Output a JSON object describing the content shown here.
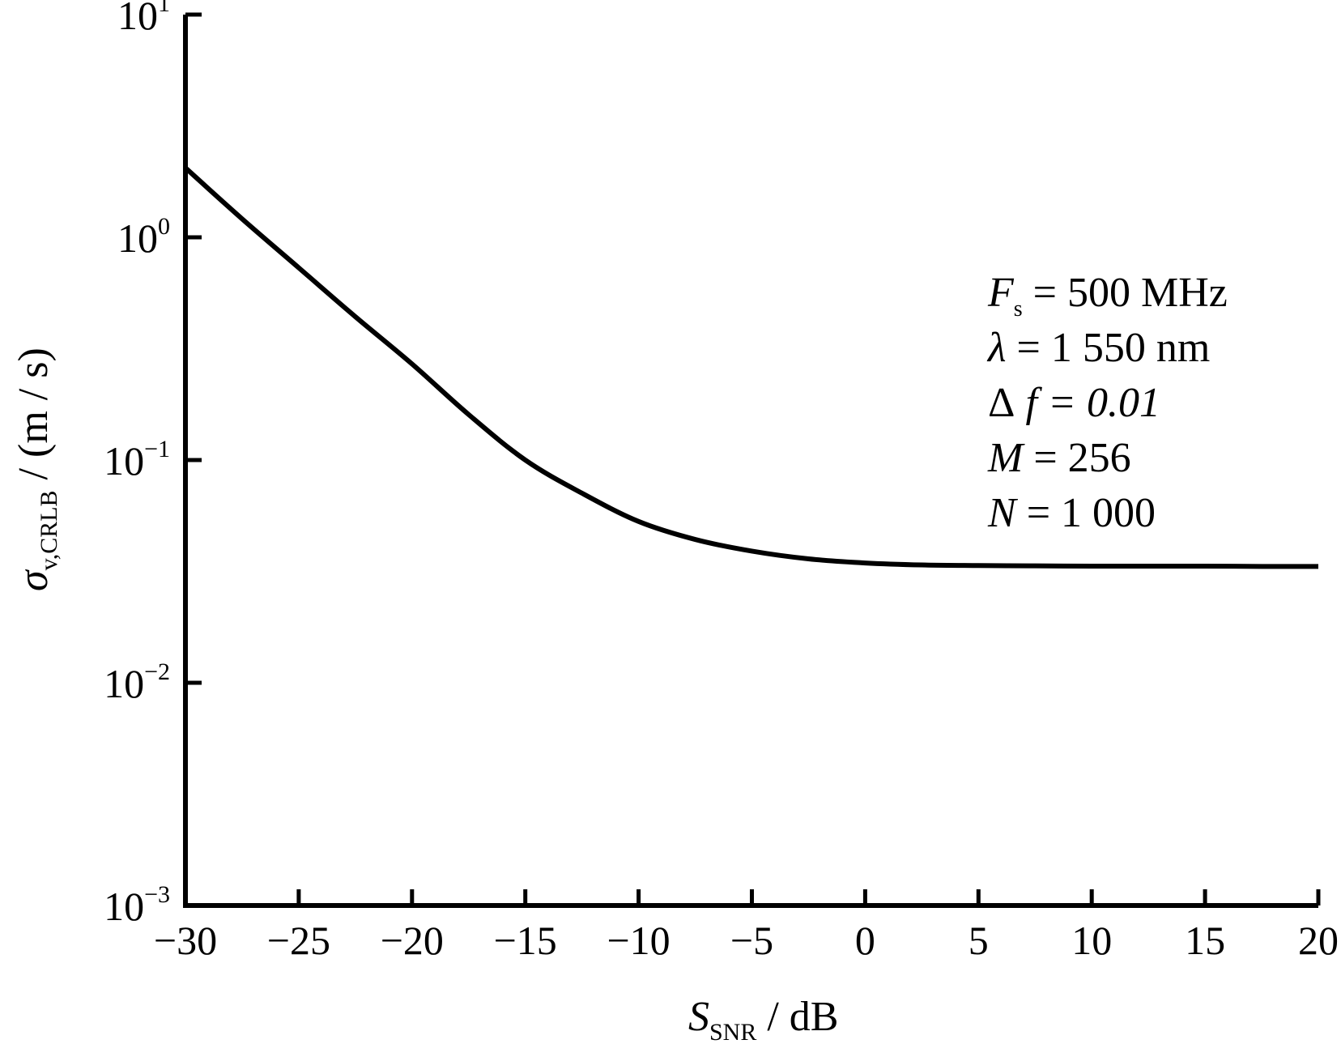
{
  "chart_data": {
    "type": "line",
    "x_scale": "linear",
    "y_scale": "log",
    "xlim": [
      -30,
      20
    ],
    "ylim": [
      0.001,
      10
    ],
    "x_ticks": [
      -30,
      -25,
      -20,
      -15,
      -10,
      -5,
      0,
      5,
      10,
      15,
      20
    ],
    "x_tick_labels": [
      "−30",
      "−25",
      "−20",
      "−15",
      "−10",
      "−5",
      "0",
      "5",
      "10",
      "15",
      "20"
    ],
    "y_ticks": [
      {
        "value": 10,
        "base": "10",
        "exp": "1"
      },
      {
        "value": 1,
        "base": "10",
        "exp": "0"
      },
      {
        "value": 0.1,
        "base": "10",
        "exp": "−1"
      },
      {
        "value": 0.01,
        "base": "10",
        "exp": "−2"
      },
      {
        "value": 0.001,
        "base": "10",
        "exp": "−3"
      }
    ],
    "grid": false,
    "xlabel": {
      "symbol": "S",
      "sub": "SNR",
      "unit": " / dB"
    },
    "ylabel": {
      "symbol": "σ",
      "sub": "v,CRLB",
      "unit": " / (m / s)"
    },
    "annotations": [
      {
        "symbol": "F",
        "sub": "s",
        "text": " = 500 MHz"
      },
      {
        "symbol": "λ",
        "sub": "",
        "text": " = 1 550 nm"
      },
      {
        "symbol": "Δ",
        "sub": "",
        "text": " f = 0.01"
      },
      {
        "symbol": "M",
        "sub": "",
        "text": " = 256"
      },
      {
        "symbol": "N",
        "sub": "",
        "text": " = 1 000"
      }
    ],
    "series": [
      {
        "color": "#000000",
        "x": [
          -30,
          -27.5,
          -25,
          -22.5,
          -20,
          -17.5,
          -15,
          -12.5,
          -10,
          -7.5,
          -5,
          -2.5,
          0,
          2.5,
          5,
          7.5,
          10,
          12.5,
          15,
          17.5,
          20
        ],
        "y": [
          2.05,
          1.21,
          0.73,
          0.44,
          0.27,
          0.16,
          0.1,
          0.071,
          0.053,
          0.044,
          0.039,
          0.036,
          0.0345,
          0.0338,
          0.0336,
          0.0335,
          0.0334,
          0.0334,
          0.0334,
          0.0333,
          0.0333
        ]
      }
    ]
  }
}
